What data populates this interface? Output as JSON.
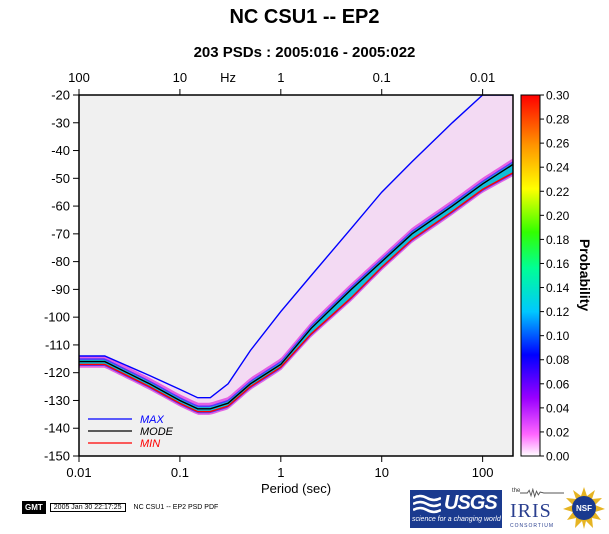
{
  "header": {
    "title": "NC CSU1 -- EP2",
    "subtitle": "203 PSDs : 2005:016 - 2005:022"
  },
  "chart_data": {
    "type": "heatmap",
    "title": "NC CSU1 -- EP2",
    "subtitle": "203 PSDs : 2005:016 - 2005:022",
    "xlabel": "Period (sec)",
    "x_scale": "log",
    "xlim": [
      0.01,
      200
    ],
    "x_ticks": [
      "0.01",
      "0.1",
      "1",
      "10",
      "100"
    ],
    "top_axis_label": "Hz",
    "top_ticks": [
      "100",
      "10",
      "1",
      "0.1",
      "0.01"
    ],
    "ylabel": "",
    "ylim": [
      -150,
      -20
    ],
    "y_ticks": [
      "-20",
      "-30",
      "-40",
      "-50",
      "-60",
      "-70",
      "-80",
      "-90",
      "-100",
      "-110",
      "-120",
      "-130",
      "-140",
      "-150"
    ],
    "colorbar": {
      "label": "Probability",
      "range": [
        0,
        0.3
      ],
      "ticks": [
        "0.00",
        "0.02",
        "0.04",
        "0.06",
        "0.08",
        "0.10",
        "0.12",
        "0.14",
        "0.16",
        "0.18",
        "0.20",
        "0.22",
        "0.24",
        "0.26",
        "0.28",
        "0.30"
      ]
    },
    "legend": {
      "placement": "bottom-left",
      "entries": [
        {
          "label": "MAX",
          "color": "#0000ff"
        },
        {
          "label": "MODE",
          "color": "#000000"
        },
        {
          "label": "MIN",
          "color": "#ff0000"
        }
      ]
    },
    "series": [
      {
        "name": "MAX",
        "color": "#0000ff",
        "period": [
          0.01,
          0.018,
          0.05,
          0.1,
          0.15,
          0.2,
          0.3,
          0.5,
          1,
          2,
          5,
          10,
          20,
          50,
          100,
          200
        ],
        "db": [
          -114,
          -114,
          -121,
          -126,
          -129,
          -129,
          -124,
          -112,
          -98,
          -85,
          -68,
          -55,
          -44,
          -30,
          -20,
          -20
        ]
      },
      {
        "name": "MODE",
        "color": "#000000",
        "period": [
          0.01,
          0.018,
          0.05,
          0.1,
          0.15,
          0.2,
          0.3,
          0.5,
          1,
          2,
          5,
          10,
          20,
          50,
          100,
          200
        ],
        "db": [
          -116,
          -116,
          -124,
          -130,
          -133,
          -133,
          -131,
          -124,
          -117,
          -104,
          -90,
          -80,
          -70,
          -60,
          -52,
          -45
        ]
      },
      {
        "name": "MIN",
        "color": "#ff0000",
        "period": [
          0.01,
          0.018,
          0.05,
          0.1,
          0.15,
          0.2,
          0.3,
          0.5,
          1,
          2,
          5,
          10,
          20,
          50,
          100,
          200
        ],
        "db": [
          -117,
          -117,
          -125,
          -131,
          -134,
          -134,
          -132,
          -125,
          -118,
          -106,
          -93,
          -82,
          -72,
          -62,
          -54,
          -48
        ]
      }
    ]
  },
  "footer": {
    "gmt_badge": "GMT",
    "stamp_date": "2005 Jan 30 22:17:25",
    "stamp_name": "NC CSU1 -- EP2 PSD PDF",
    "usgs_name": "USGS",
    "usgs_slogan": "science for a changing world",
    "iris_the": "the",
    "iris_name": "IRIS",
    "iris_consortium": "CONSORTIUM",
    "nsf_name": "NSF"
  }
}
